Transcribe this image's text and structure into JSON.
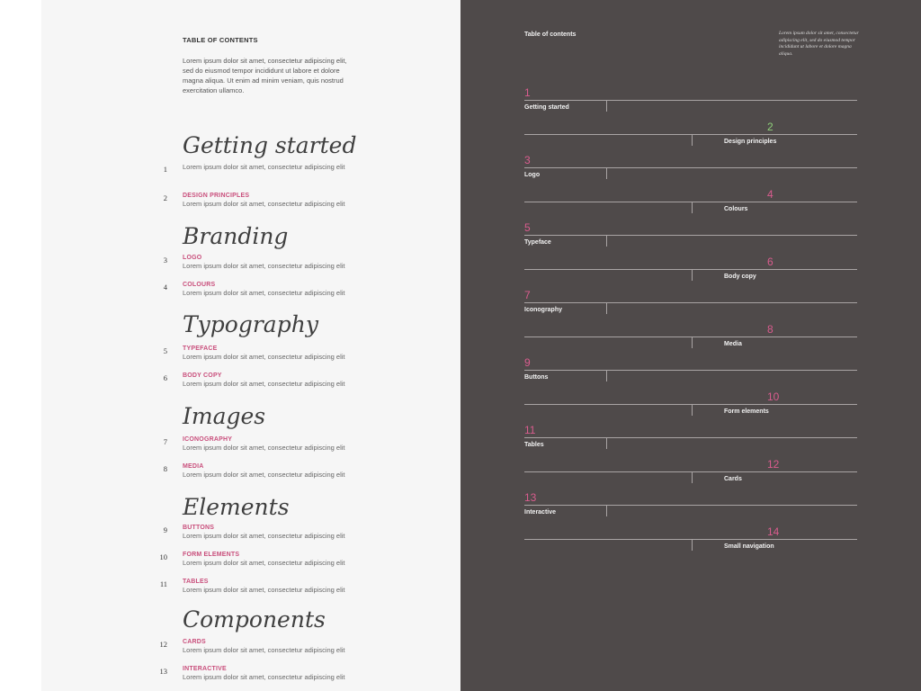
{
  "left": {
    "toc_title": "TABLE OF CONTENTS",
    "intro": "Lorem ipsum dolor sit amet, consectetur adipiscing elit, sed do eiusmod tempor incididunt ut labore et dolore magna aliqua. Ut enim ad minim veniam, quis nostrud exercitation ullamco.",
    "sections": [
      {
        "heading": "Getting started",
        "entries": [
          {
            "num": "1",
            "label": "",
            "desc": "Lorem ipsum dolor sit amet, consectetur adipiscing elit"
          },
          {
            "num": "2",
            "label": "DESIGN PRINCIPLES",
            "desc": "Lorem ipsum dolor sit amet, consectetur adipiscing elit"
          }
        ]
      },
      {
        "heading": "Branding",
        "entries": [
          {
            "num": "3",
            "label": "LOGO",
            "desc": "Lorem ipsum dolor sit amet, consectetur adipiscing elit"
          },
          {
            "num": "4",
            "label": "COLOURS",
            "desc": "Lorem ipsum dolor sit amet, consectetur adipiscing elit"
          }
        ]
      },
      {
        "heading": "Typography",
        "entries": [
          {
            "num": "5",
            "label": "TYPEFACE",
            "desc": "Lorem ipsum dolor sit amet, consectetur adipiscing elit"
          },
          {
            "num": "6",
            "label": "BODY COPY",
            "desc": "Lorem ipsum dolor sit amet, consectetur adipiscing elit"
          }
        ]
      },
      {
        "heading": "Images",
        "entries": [
          {
            "num": "7",
            "label": "ICONOGRAPHY",
            "desc": "Lorem ipsum dolor sit amet, consectetur adipiscing elit"
          },
          {
            "num": "8",
            "label": "MEDIA",
            "desc": "Lorem ipsum dolor sit amet, consectetur adipiscing elit"
          }
        ]
      },
      {
        "heading": "Elements",
        "entries": [
          {
            "num": "9",
            "label": "BUTTONS",
            "desc": "Lorem ipsum dolor sit amet, consectetur adipiscing elit"
          },
          {
            "num": "10",
            "label": "FORM ELEMENTS",
            "desc": "Lorem ipsum dolor sit amet, consectetur adipiscing elit"
          },
          {
            "num": "11",
            "label": "TABLES",
            "desc": "Lorem ipsum dolor sit amet, consectetur adipiscing elit"
          }
        ]
      },
      {
        "heading": "Components",
        "entries": [
          {
            "num": "12",
            "label": "CARDS",
            "desc": "Lorem ipsum dolor sit amet, consectetur adipiscing elit"
          },
          {
            "num": "13",
            "label": "INTERACTIVE",
            "desc": "Lorem ipsum dolor sit amet, consectetur adipiscing elit"
          }
        ]
      }
    ]
  },
  "right": {
    "title": "Table of contents",
    "note": "Lorem ipsum dolor sit amet, consectetur adipiscing elit, sed do eiusmod tempor incididunt ut labore et dolore magna aliqua.",
    "items": [
      {
        "num": "1",
        "name": "Getting started"
      },
      {
        "num": "2",
        "name": "Design principles"
      },
      {
        "num": "3",
        "name": "Logo"
      },
      {
        "num": "4",
        "name": "Colours"
      },
      {
        "num": "5",
        "name": "Typeface"
      },
      {
        "num": "6",
        "name": "Body copy"
      },
      {
        "num": "7",
        "name": "Iconography"
      },
      {
        "num": "8",
        "name": "Media"
      },
      {
        "num": "9",
        "name": "Buttons"
      },
      {
        "num": "10",
        "name": "Form elements"
      },
      {
        "num": "11",
        "name": "Tables"
      },
      {
        "num": "12",
        "name": "Cards"
      },
      {
        "num": "13",
        "name": "Interactive"
      },
      {
        "num": "14",
        "name": "Small navigation"
      }
    ]
  },
  "colors": {
    "accent": "#c94f7c",
    "accent_number": "#d95c8e",
    "highlight_number": "#8ed07a",
    "dark_panel": "#4f4a4a",
    "light_panel": "#f6f6f6"
  }
}
